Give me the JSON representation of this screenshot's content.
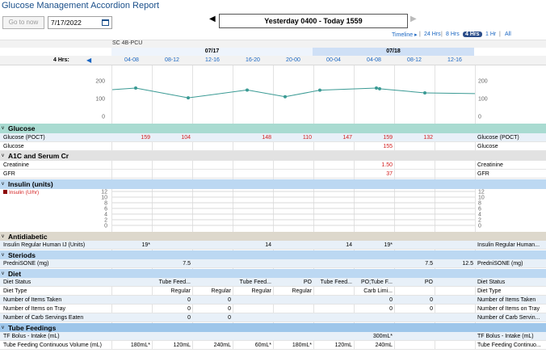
{
  "title": "Glucose Management Accordion Report",
  "toolbar": {
    "go_now": "Go to now",
    "date_value": "7/17/2022",
    "range_label": "Yesterday 0400 - Today 1559"
  },
  "timeline": [
    "Timeline ▸",
    "24 Hrs",
    "8 Hrs",
    "4 Hrs",
    "1 Hr",
    "All"
  ],
  "location": "SC 4B-PCU",
  "days": [
    "07/17",
    "07/18"
  ],
  "interval_label": "4 Hrs:",
  "columns": [
    "04-08",
    "08-12",
    "12-16",
    "16-20",
    "20-00",
    "00-04",
    "04-08",
    "08-12",
    "12-16"
  ],
  "graph": {
    "ticks": [
      "200",
      "100",
      "0"
    ]
  },
  "sections": {
    "glucose": "Glucose",
    "a1c": "A1C and Serum Cr",
    "insulin": "Insulin (units)",
    "antidiabetic": "Antidiabetic",
    "steroids": "Steriods",
    "diet": "Diet",
    "tube": "Tube Feedings"
  },
  "insulin_legend": "Insulin (U/hr)",
  "insulin_ticks": [
    "12",
    "10",
    "8",
    "6",
    "4",
    "2",
    "0"
  ],
  "rows": {
    "glucose_poct": {
      "label": "Glucose (POCT)",
      "values": [
        "159",
        "104",
        "",
        "148",
        "110",
        "147",
        "159",
        "132",
        ""
      ]
    },
    "glucose": {
      "label": "Glucose",
      "values": [
        "",
        "",
        "",
        "",
        "",
        "",
        "155",
        "",
        ""
      ]
    },
    "creatinine": {
      "label": "Creatinine",
      "values": [
        "",
        "",
        "",
        "",
        "",
        "",
        "1.50",
        "",
        ""
      ]
    },
    "gfr": {
      "label": "GFR",
      "values": [
        "",
        "",
        "",
        "",
        "",
        "",
        "37",
        "",
        ""
      ]
    },
    "insulin_reg": {
      "label": "Insulin Regular Human IJ (Units)",
      "right": "Insulin Regular Human...",
      "values": [
        "19*",
        "",
        "",
        "14",
        "",
        "14",
        "19*",
        "",
        ""
      ]
    },
    "prednisone": {
      "label": "PredniSONE (mg)",
      "values": [
        "",
        "7.5",
        "",
        "",
        "",
        "",
        "",
        "7.5",
        "12.5"
      ]
    },
    "diet_status": {
      "label": "Diet Status",
      "values": [
        "",
        "Tube Feed...",
        "",
        "Tube Feed...",
        "PO",
        "Tube Feed...",
        "PO;Tube F...",
        "PO",
        ""
      ]
    },
    "diet_type": {
      "label": "Diet Type",
      "values": [
        "",
        "Regular",
        "Regular",
        "Regular",
        "Regular",
        "",
        "Carb Limi...",
        "",
        ""
      ]
    },
    "items_taken": {
      "label": "Number of Items Taken",
      "values": [
        "",
        "0",
        "0",
        "",
        "",
        "",
        "0",
        "0",
        ""
      ]
    },
    "items_tray": {
      "label": "Number of Items on Tray",
      "values": [
        "",
        "0",
        "0",
        "",
        "",
        "",
        "0",
        "0",
        ""
      ]
    },
    "carb_servings": {
      "label": "Number of Carb Servings Eaten",
      "right": "Number of Carb Servin...",
      "values": [
        "",
        "0",
        "0",
        "",
        "",
        "",
        "",
        "",
        ""
      ]
    },
    "tf_bolus": {
      "label": "TF Bolus - Intake (mL)",
      "values": [
        "",
        "",
        "",
        "",
        "",
        "",
        "300mL*",
        "",
        ""
      ]
    },
    "tf_cont": {
      "label": "Tube Feeding Continuous Volume (mL)",
      "right": "Tube Feeding Continuo...",
      "values": [
        "180mL*",
        "120mL",
        "240mL",
        "60mL*",
        "180mL*",
        "120mL",
        "240mL",
        "",
        ""
      ]
    }
  },
  "chart_data": {
    "type": "line",
    "x": [
      "07/17 04-08",
      "07/17 08-12",
      "07/17 16-20",
      "07/17 20-00",
      "07/18 00-04",
      "07/18 04-08",
      "07/18 04-08",
      "07/18 08-12"
    ],
    "series": [
      {
        "values": [
          159,
          104,
          148,
          110,
          147,
          159,
          155,
          132
        ]
      }
    ],
    "ylim": [
      0,
      200
    ],
    "color": "#3a9a94"
  }
}
